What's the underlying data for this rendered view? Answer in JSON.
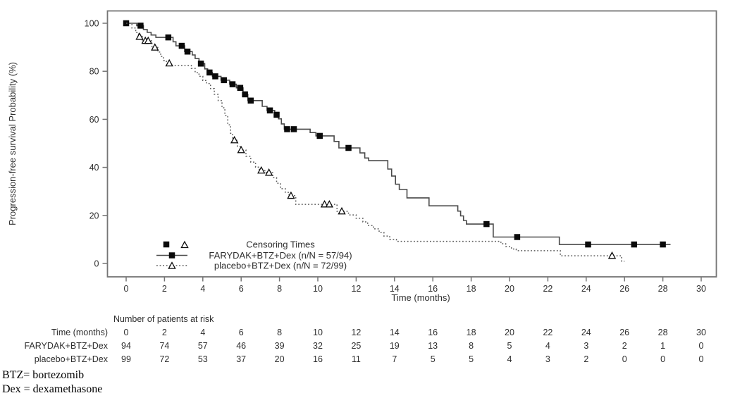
{
  "figure": {
    "footnotes": [
      "BTZ= bortezomib",
      "Dex = dexamethasone"
    ]
  },
  "chart_data": {
    "type": "line",
    "subtype": "kaplan-meier-step",
    "title": "",
    "xlabel": "Time (months)",
    "ylabel": "Progression-free survival Probability (%)",
    "xlim": [
      0,
      30
    ],
    "ylim": [
      0,
      100
    ],
    "xticks": [
      0,
      2,
      4,
      6,
      8,
      10,
      12,
      14,
      16,
      18,
      20,
      22,
      24,
      26,
      28,
      30
    ],
    "yticks": [
      0,
      20,
      40,
      60,
      80,
      100
    ],
    "grid": false,
    "colors": {
      "curve_solid": "#4a4a4a",
      "curve_dotted": "#5a5a5a",
      "marker": "#0a0a0a",
      "axis": "#757575",
      "text": "#2e2e2e"
    },
    "legend": {
      "position": "inside-bottom-left",
      "header": "Censoring Times",
      "entries": [
        {
          "name": "FARYDAK+BTZ+Dex (n/N = 57/94)",
          "marker": "filled-square",
          "line": "solid"
        },
        {
          "name": "placebo+BTZ+Dex (n/N = 72/99)",
          "marker": "open-triangle",
          "line": "dotted"
        }
      ]
    },
    "series": [
      {
        "name": "FARYDAK+BTZ+Dex",
        "line": "solid",
        "marker": "filled-square",
        "end_time": 28.4,
        "steps": [
          [
            0,
            100
          ],
          [
            0.55,
            99
          ],
          [
            0.9,
            97.4
          ],
          [
            1.1,
            96.2
          ],
          [
            1.3,
            95.1
          ],
          [
            1.55,
            94.1
          ],
          [
            2.45,
            92.3
          ],
          [
            2.6,
            90.6
          ],
          [
            3.05,
            88.2
          ],
          [
            3.45,
            86.8
          ],
          [
            3.6,
            85.3
          ],
          [
            3.8,
            83.2
          ],
          [
            4.1,
            81
          ],
          [
            4.25,
            79.5
          ],
          [
            4.5,
            77.9
          ],
          [
            4.95,
            76.3
          ],
          [
            5.4,
            74.6
          ],
          [
            5.75,
            73.1
          ],
          [
            6.1,
            70.4
          ],
          [
            6.35,
            67.8
          ],
          [
            7.1,
            65.4
          ],
          [
            7.35,
            63.7
          ],
          [
            7.75,
            61.9
          ],
          [
            7.95,
            60.2
          ],
          [
            8.1,
            58.1
          ],
          [
            8.25,
            55.9
          ],
          [
            9.6,
            54.5
          ],
          [
            9.9,
            53.1
          ],
          [
            10.85,
            50.8
          ],
          [
            11.1,
            48.1
          ],
          [
            12.2,
            46
          ],
          [
            12.45,
            43.9
          ],
          [
            12.65,
            42.8
          ],
          [
            13.65,
            39.3
          ],
          [
            13.85,
            36.4
          ],
          [
            14.05,
            33
          ],
          [
            14.25,
            30.8
          ],
          [
            14.65,
            27.3
          ],
          [
            15.8,
            24
          ],
          [
            17.3,
            21.8
          ],
          [
            17.45,
            19.8
          ],
          [
            17.6,
            17.9
          ],
          [
            17.75,
            16.4
          ],
          [
            19.15,
            11
          ],
          [
            22.6,
            7.9
          ]
        ],
        "censor_marks": [
          [
            0,
            100
          ],
          [
            0.75,
            99
          ],
          [
            2.2,
            94.1
          ],
          [
            2.9,
            90.6
          ],
          [
            3.2,
            88.2
          ],
          [
            3.9,
            83.2
          ],
          [
            4.35,
            79.5
          ],
          [
            4.65,
            77.9
          ],
          [
            5.1,
            76.3
          ],
          [
            5.55,
            74.6
          ],
          [
            5.95,
            73.1
          ],
          [
            6.2,
            70.4
          ],
          [
            6.5,
            67.8
          ],
          [
            7.5,
            63.7
          ],
          [
            7.85,
            61.9
          ],
          [
            8.4,
            55.9
          ],
          [
            8.75,
            55.9
          ],
          [
            10.1,
            53.1
          ],
          [
            11.6,
            48.1
          ],
          [
            18.8,
            16.4
          ],
          [
            20.4,
            11
          ],
          [
            24.1,
            7.9
          ],
          [
            26.5,
            7.9
          ],
          [
            28.0,
            7.9
          ]
        ]
      },
      {
        "name": "placebo+BTZ+Dex",
        "line": "dotted",
        "marker": "open-triangle",
        "end_time": 26.0,
        "steps": [
          [
            0,
            100
          ],
          [
            0.3,
            98
          ],
          [
            0.5,
            96.1
          ],
          [
            0.65,
            94.4
          ],
          [
            0.85,
            92.7
          ],
          [
            1.35,
            89.9
          ],
          [
            1.65,
            88
          ],
          [
            1.8,
            86.2
          ],
          [
            1.95,
            84.5
          ],
          [
            2.1,
            83.3
          ],
          [
            2.4,
            82.4
          ],
          [
            3.4,
            81.2
          ],
          [
            3.6,
            79.4
          ],
          [
            3.8,
            77.9
          ],
          [
            4.0,
            76.2
          ],
          [
            4.2,
            74.9
          ],
          [
            4.4,
            72.8
          ],
          [
            4.6,
            70.4
          ],
          [
            4.8,
            67.8
          ],
          [
            5.0,
            64.8
          ],
          [
            5.15,
            61.6
          ],
          [
            5.3,
            57.7
          ],
          [
            5.45,
            54.2
          ],
          [
            5.55,
            51.3
          ],
          [
            5.8,
            48.7
          ],
          [
            5.95,
            47.2
          ],
          [
            6.25,
            44.6
          ],
          [
            6.5,
            42.2
          ],
          [
            6.75,
            40.1
          ],
          [
            6.95,
            38.7
          ],
          [
            7.3,
            37.8
          ],
          [
            7.65,
            35.7
          ],
          [
            7.85,
            33.4
          ],
          [
            8.05,
            31.1
          ],
          [
            8.3,
            29.6
          ],
          [
            8.5,
            28.2
          ],
          [
            8.85,
            24.6
          ],
          [
            11.0,
            21.7
          ],
          [
            11.6,
            20.2
          ],
          [
            12.0,
            18.8
          ],
          [
            12.35,
            17.3
          ],
          [
            12.6,
            15.8
          ],
          [
            12.9,
            14.4
          ],
          [
            13.2,
            12.9
          ],
          [
            13.45,
            11.4
          ],
          [
            13.75,
            10
          ],
          [
            14.1,
            9.2
          ],
          [
            19.55,
            8.2
          ],
          [
            19.8,
            7
          ],
          [
            20.1,
            6
          ],
          [
            20.35,
            5.3
          ],
          [
            22.65,
            3.2
          ],
          [
            25.85,
            0.9
          ]
        ],
        "censor_marks": [
          [
            0.7,
            94.4
          ],
          [
            1.0,
            92.7
          ],
          [
            1.15,
            92.7
          ],
          [
            1.5,
            89.9
          ],
          [
            2.25,
            83.3
          ],
          [
            5.65,
            51.3
          ],
          [
            6.0,
            47.2
          ],
          [
            7.05,
            38.7
          ],
          [
            7.45,
            37.8
          ],
          [
            8.6,
            28.2
          ],
          [
            10.35,
            24.6
          ],
          [
            10.6,
            24.6
          ],
          [
            11.25,
            21.7
          ],
          [
            25.35,
            3.2
          ]
        ]
      }
    ],
    "at_risk_table": {
      "title": "Number of patients at risk",
      "row_labels": [
        "Time (months)",
        "FARYDAK+BTZ+Dex",
        "placebo+BTZ+Dex"
      ],
      "times": [
        0,
        2,
        4,
        6,
        8,
        10,
        12,
        14,
        16,
        18,
        20,
        22,
        24,
        26,
        28,
        30
      ],
      "rows": [
        [
          94,
          74,
          57,
          46,
          39,
          32,
          25,
          19,
          13,
          8,
          5,
          4,
          3,
          2,
          1,
          0
        ],
        [
          99,
          72,
          53,
          37,
          20,
          16,
          11,
          7,
          5,
          5,
          4,
          3,
          2,
          0,
          0,
          0
        ]
      ]
    }
  }
}
